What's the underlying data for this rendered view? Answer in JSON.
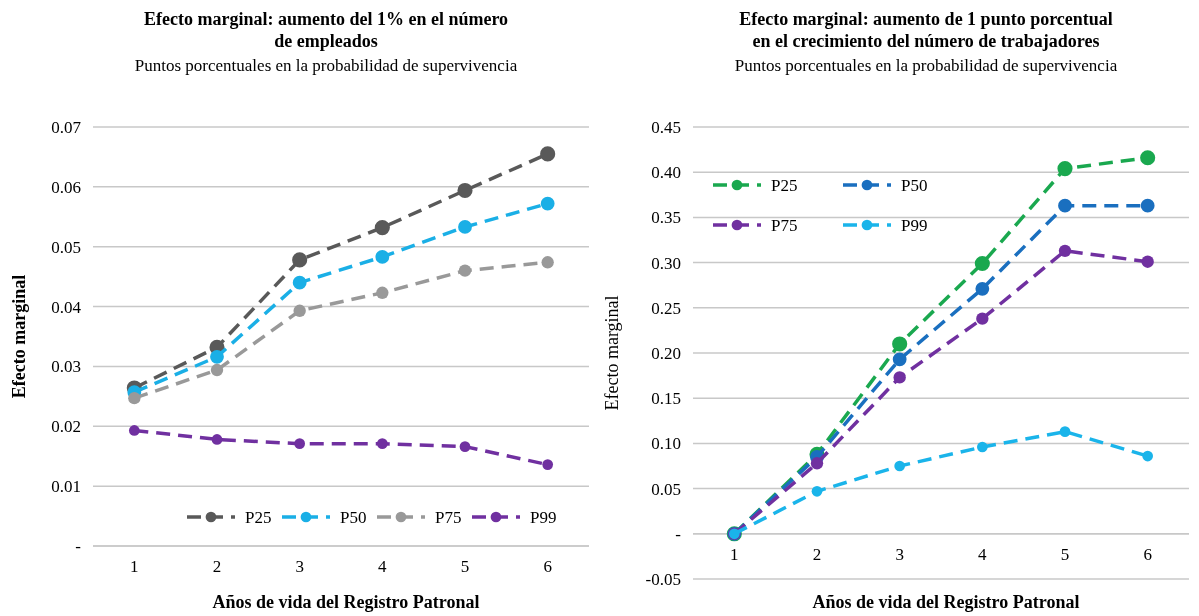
{
  "chart_data": [
    {
      "type": "line",
      "title": "Efecto marginal: aumento del 1% en el número\nde empleados",
      "subtitle": "Puntos porcentuales en la probabilidad de supervivencia",
      "xlabel": "Años de vida del Registro Patronal",
      "ylabel": "Efecto marginal",
      "categories": [
        "1",
        "2",
        "3",
        "4",
        "5",
        "6"
      ],
      "series": [
        {
          "name": "P25",
          "color": "#595959",
          "values": [
            0.0264,
            0.0332,
            0.0478,
            0.0532,
            0.0594,
            0.0655
          ]
        },
        {
          "name": "P50",
          "color": "#1aafe6",
          "values": [
            0.0257,
            0.0316,
            0.044,
            0.0483,
            0.0533,
            0.0572
          ]
        },
        {
          "name": "P75",
          "color": "#999999",
          "values": [
            0.0247,
            0.0294,
            0.0393,
            0.0423,
            0.046,
            0.0474
          ]
        },
        {
          "name": "P99",
          "color": "#7030a0",
          "values": [
            0.0193,
            0.0178,
            0.0171,
            0.0171,
            0.0166,
            0.0136
          ]
        }
      ],
      "ylim": [
        0,
        0.07
      ],
      "yticks": [
        {
          "value": 0,
          "label": "-"
        },
        0.01,
        0.02,
        0.03,
        0.04,
        0.05,
        0.06,
        0.07
      ],
      "grid": "y",
      "legend": "bottom",
      "marker": "circle",
      "line_style": "dashed"
    },
    {
      "type": "line",
      "title": "Efecto marginal: aumento de 1 punto porcentual\nen el crecimiento del número de trabajadores",
      "subtitle": "Puntos porcentuales en la probabilidad de supervivencia",
      "xlabel": "Años de vida del Registro Patronal",
      "ylabel": "Efecto marginal",
      "categories": [
        "1",
        "2",
        "3",
        "4",
        "5",
        "6"
      ],
      "series": [
        {
          "name": "P25",
          "color": "#1aa84f",
          "values": [
            0,
            0.088,
            0.21,
            0.299,
            0.404,
            0.416
          ]
        },
        {
          "name": "P50",
          "color": "#1a6fbf",
          "values": [
            0,
            0.085,
            0.193,
            0.271,
            0.363,
            0.363
          ]
        },
        {
          "name": "P75",
          "color": "#7030a0",
          "values": [
            0,
            0.078,
            0.173,
            0.238,
            0.313,
            0.301
          ]
        },
        {
          "name": "P99",
          "color": "#1ab4ea",
          "values": [
            0,
            0.047,
            0.075,
            0.096,
            0.113,
            0.086
          ]
        }
      ],
      "ylim": [
        -0.05,
        0.45
      ],
      "yticks": [
        {
          "value": -0.05,
          "label": "-0.05"
        },
        {
          "value": 0,
          "label": "-"
        },
        {
          "value": 0.05,
          "label": "0.05"
        },
        {
          "value": 0.1,
          "label": "0.10"
        },
        {
          "value": 0.15,
          "label": "0.15"
        },
        {
          "value": 0.2,
          "label": "0.20"
        },
        {
          "value": 0.25,
          "label": "0.25"
        },
        {
          "value": 0.3,
          "label": "0.30"
        },
        {
          "value": 0.35,
          "label": "0.35"
        },
        {
          "value": 0.4,
          "label": "0.40"
        },
        {
          "value": 0.45,
          "label": "0.45"
        }
      ],
      "grid": "y",
      "legend": "top left",
      "marker": "circle",
      "line_style": "dashed"
    }
  ]
}
